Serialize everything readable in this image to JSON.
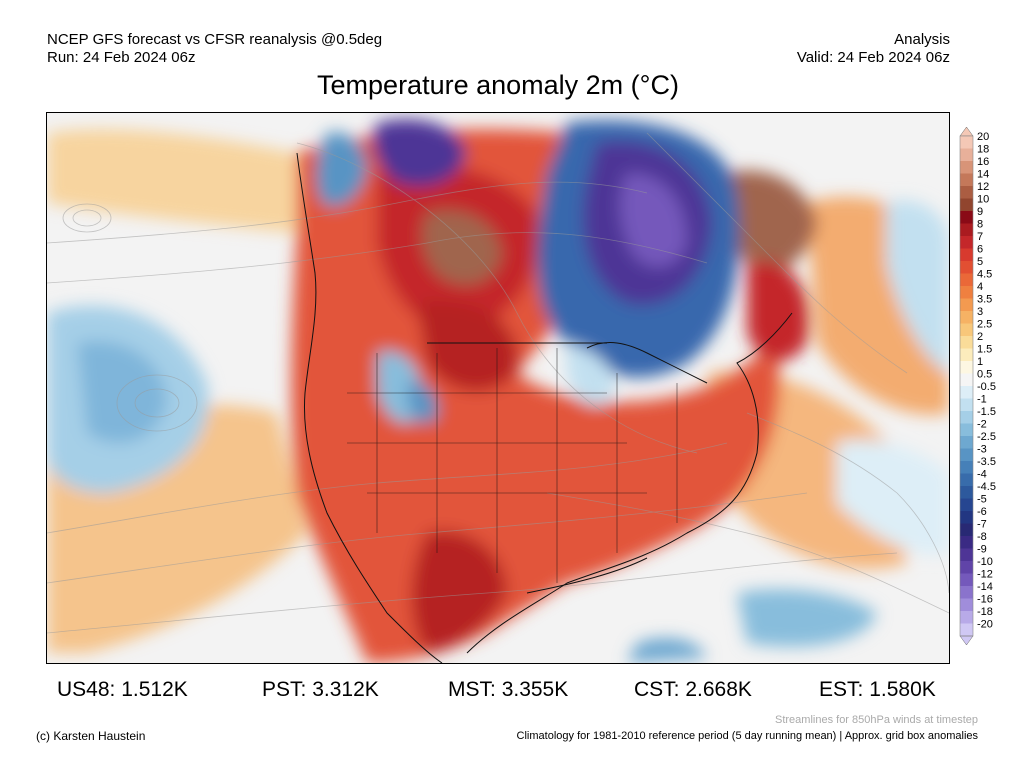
{
  "header": {
    "line1": "NCEP GFS forecast vs CFSR reanalysis @0.5deg",
    "line2": "Run: 24 Feb 2024 06z",
    "right_line1": "Analysis",
    "right_line2": "Valid: 24 Feb 2024 06z",
    "title": "Temperature anomaly 2m (°C)"
  },
  "colorbar": {
    "labels": [
      "20",
      "18",
      "16",
      "14",
      "12",
      "10",
      "9",
      "8",
      "7",
      "6",
      "5",
      "4.5",
      "4",
      "3.5",
      "3",
      "2.5",
      "2",
      "1.5",
      "1",
      "0.5",
      "-0.5",
      "-1",
      "-1.5",
      "-2",
      "-2.5",
      "-3",
      "-3.5",
      "-4",
      "-4.5",
      "-5",
      "-6",
      "-7",
      "-8",
      "-9",
      "-10",
      "-12",
      "-14",
      "-16",
      "-18",
      "-20"
    ],
    "colors": [
      "#f4c8b6",
      "#e8b09a",
      "#d89478",
      "#c4785a",
      "#ab5d42",
      "#91452e",
      "#8a0a16",
      "#aa1b20",
      "#c4272a",
      "#d83a2e",
      "#e24f32",
      "#ea6838",
      "#ef8040",
      "#f39a50",
      "#f6b264",
      "#f8c77a",
      "#fadc99",
      "#fcecbc",
      "#fdf7e2",
      "#f5f5f5",
      "#ddeef7",
      "#c2e0f0",
      "#a5cfe7",
      "#88bddc",
      "#6ea8d0",
      "#5894c4",
      "#4680b8",
      "#386cab",
      "#2d599d",
      "#264691",
      "#223682",
      "#282974",
      "#3a2a84",
      "#4e3596",
      "#6044a8",
      "#7459bb",
      "#8a73cc",
      "#a08ddb",
      "#b8aae8",
      "#d0c8f4"
    ]
  },
  "map": {
    "region": "North America",
    "map_colors": {
      "warm_dark": "#a51e22",
      "warm": "#e2543a",
      "warm_light": "#f5a860",
      "neutral": "#f5f5f5",
      "cool": "#9ccbe6",
      "cold": "#3868ad",
      "very_cold": "#5a3aa0",
      "extreme_warm": "#a0654e"
    },
    "streamlines": "850hPa winds"
  },
  "stats": [
    {
      "label": "US48:",
      "value": "1.512K"
    },
    {
      "label": "PST:",
      "value": "3.312K"
    },
    {
      "label": "MST:",
      "value": "3.355K"
    },
    {
      "label": "CST:",
      "value": "2.668K"
    },
    {
      "label": "EST:",
      "value": "1.580K"
    }
  ],
  "footer": {
    "streamlines_note": "Streamlines for 850hPa winds at timestep",
    "copyright": "(c) Karsten Haustein",
    "climatology_note": "Climatology for 1981-2010 reference period (5 day running mean) | Approx. grid box anomalies"
  }
}
